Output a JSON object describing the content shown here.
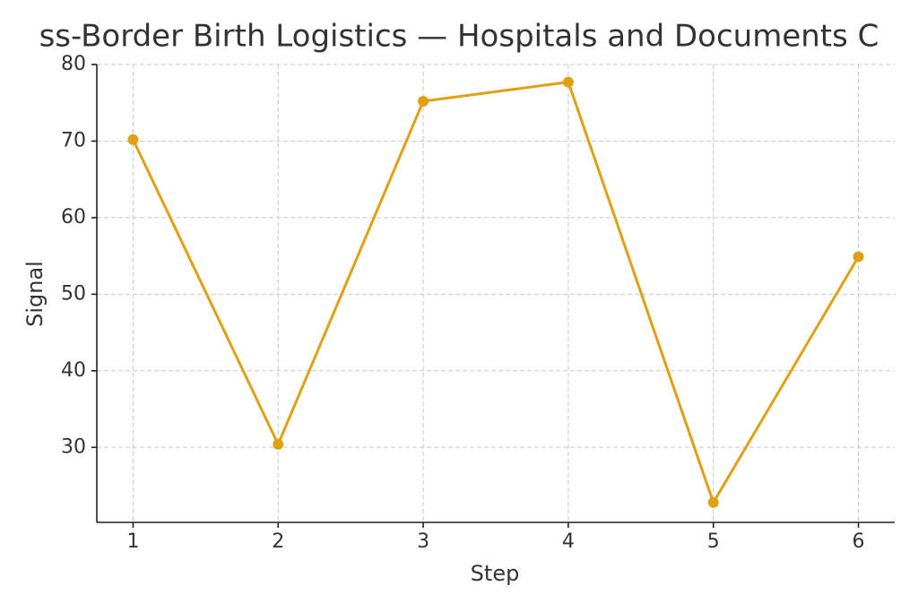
{
  "chart_data": {
    "type": "line",
    "title": "ss-Border Birth Logistics — Hospitals and Documents C",
    "x_label": "Step",
    "y_label": "Signal",
    "x": [
      1,
      2,
      3,
      4,
      5,
      6
    ],
    "series": [
      {
        "name": "Signal",
        "color": "#e0a010",
        "values": [
          70.2,
          30.4,
          75.2,
          77.7,
          22.8,
          54.9
        ]
      }
    ],
    "xlim": [
      0.75,
      6.25
    ],
    "xticks": [
      1,
      2,
      3,
      4,
      5,
      6
    ],
    "ylim": [
      20.2,
      80
    ],
    "yticks": [
      30,
      40,
      50,
      60,
      70,
      80
    ],
    "grid": true
  }
}
